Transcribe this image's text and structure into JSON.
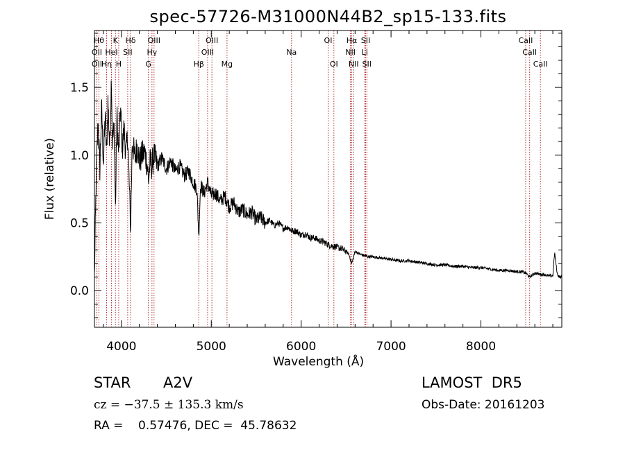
{
  "chart_data": {
    "type": "line",
    "title": "spec-57726-M31000N44B2_sp15-133.fits",
    "xlabel": "Wavelength (Å)",
    "ylabel": "Flux (relative)",
    "xlim": [
      3700,
      8900
    ],
    "ylim": [
      -0.27,
      1.92
    ],
    "x_ticks": [
      4000,
      5000,
      6000,
      7000,
      8000
    ],
    "y_ticks": [
      0.0,
      0.5,
      1.0,
      1.5
    ],
    "x_tick_labels": [
      "4000",
      "5000",
      "6000",
      "7000",
      "8000"
    ],
    "y_tick_labels": [
      "0.0",
      "0.5",
      "1.0",
      "1.5"
    ],
    "grid": false,
    "line_color": "#000000",
    "marker_color": "#b03030",
    "series": [
      {
        "x": [
          3700,
          3720,
          3740,
          3760,
          3780,
          3800,
          3820,
          3835,
          3850,
          3870,
          3889,
          3900,
          3920,
          3934,
          3950,
          3970,
          3990,
          4010,
          4030,
          4050,
          4070,
          4102,
          4120,
          4150,
          4180,
          4200,
          4230,
          4260,
          4290,
          4300,
          4320,
          4340,
          4360,
          4400,
          4450,
          4500,
          4550,
          4600,
          4650,
          4700,
          4750,
          4800,
          4840,
          4861,
          4880,
          4920,
          4960,
          5000,
          5050,
          5100,
          5150,
          5200,
          5250,
          5300,
          5350,
          5400,
          5450,
          5500,
          5550,
          5600,
          5650,
          5700,
          5750,
          5800,
          5850,
          5900,
          5950,
          6000,
          6050,
          6100,
          6150,
          6200,
          6250,
          6300,
          6350,
          6400,
          6450,
          6500,
          6530,
          6563,
          6600,
          6650,
          6700,
          6750,
          6800,
          6900,
          7000,
          7100,
          7200,
          7300,
          7400,
          7500,
          7600,
          7700,
          7800,
          7900,
          8000,
          8100,
          8200,
          8300,
          8400,
          8450,
          8500,
          8542,
          8600,
          8662,
          8700,
          8750,
          8800,
          8820,
          8850,
          8880,
          8900
        ],
        "y": [
          0.1,
          0.85,
          1.25,
          0.9,
          1.35,
          0.95,
          1.3,
          1.0,
          1.4,
          1.05,
          1.6,
          1.1,
          1.2,
          0.6,
          1.3,
          1.0,
          1.35,
          1.05,
          1.2,
          1.0,
          1.15,
          0.45,
          1.1,
          0.98,
          1.08,
          0.95,
          1.0,
          1.02,
          0.92,
          0.8,
          0.95,
          0.92,
          1.0,
          0.92,
          0.98,
          0.9,
          0.96,
          0.88,
          0.92,
          0.85,
          0.88,
          0.8,
          0.75,
          0.4,
          0.78,
          0.72,
          0.8,
          0.7,
          0.72,
          0.66,
          0.7,
          0.62,
          0.65,
          0.58,
          0.6,
          0.56,
          0.58,
          0.52,
          0.54,
          0.5,
          0.52,
          0.48,
          0.5,
          0.46,
          0.47,
          0.44,
          0.44,
          0.41,
          0.42,
          0.39,
          0.39,
          0.37,
          0.36,
          0.34,
          0.33,
          0.32,
          0.31,
          0.29,
          0.27,
          0.2,
          0.29,
          0.27,
          0.26,
          0.25,
          0.25,
          0.24,
          0.23,
          0.22,
          0.22,
          0.21,
          0.2,
          0.19,
          0.19,
          0.18,
          0.18,
          0.17,
          0.17,
          0.16,
          0.15,
          0.15,
          0.14,
          0.14,
          0.13,
          0.1,
          0.13,
          0.12,
          0.12,
          0.11,
          0.11,
          0.28,
          0.12,
          0.1,
          0.1
        ]
      }
    ],
    "line_markers": [
      {
        "x": 3750,
        "row": 1,
        "label": "Hθ"
      },
      {
        "x": 3727,
        "row": 2,
        "label": "OII"
      },
      {
        "x": 3727,
        "row": 3,
        "label": "OII"
      },
      {
        "x": 3835,
        "row": 3,
        "label": "Hη"
      },
      {
        "x": 3889,
        "row": 2,
        "label": "HeI"
      },
      {
        "x": 3934,
        "row": 1,
        "label": "K"
      },
      {
        "x": 3970,
        "row": 3,
        "label": "H"
      },
      {
        "x": 4070,
        "row": 2,
        "label": "SII"
      },
      {
        "x": 4102,
        "row": 1,
        "label": "Hδ"
      },
      {
        "x": 4300,
        "row": 3,
        "label": "G"
      },
      {
        "x": 4340,
        "row": 2,
        "label": "Hγ"
      },
      {
        "x": 4363,
        "row": 1,
        "label": "OIII"
      },
      {
        "x": 4861,
        "row": 3,
        "label": "Hβ"
      },
      {
        "x": 4959,
        "row": 2,
        "label": "OIII"
      },
      {
        "x": 5007,
        "row": 1,
        "label": "OIII"
      },
      {
        "x": 5175,
        "row": 3,
        "label": "Mg"
      },
      {
        "x": 5893,
        "row": 2,
        "label": "Na"
      },
      {
        "x": 6300,
        "row": 1,
        "label": "OI"
      },
      {
        "x": 6364,
        "row": 3,
        "label": "OI"
      },
      {
        "x": 6548,
        "row": 2,
        "label": "NII"
      },
      {
        "x": 6563,
        "row": 1,
        "label": "Hα"
      },
      {
        "x": 6584,
        "row": 3,
        "label": "NII"
      },
      {
        "x": 6707,
        "row": 2,
        "label": "Li"
      },
      {
        "x": 6717,
        "row": 1,
        "label": "SII"
      },
      {
        "x": 6731,
        "row": 3,
        "label": "SII"
      },
      {
        "x": 8498,
        "row": 1,
        "label": "CaII"
      },
      {
        "x": 8542,
        "row": 2,
        "label": "CaII"
      },
      {
        "x": 8662,
        "row": 3,
        "label": "CaII"
      }
    ]
  },
  "footer": {
    "object_class": "STAR",
    "subclass": "A2V",
    "survey": "LAMOST  DR5",
    "redshift": "cz = −37.5 ± 135.3 km/s",
    "obs_date": "Obs-Date: 20161203",
    "coords": "RA =    0.57476, DEC =  45.78632"
  }
}
